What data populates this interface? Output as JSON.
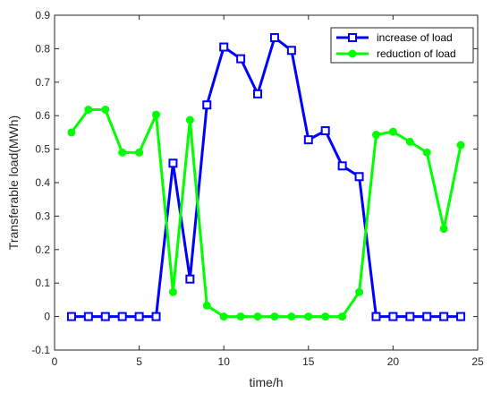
{
  "chart_data": {
    "type": "line",
    "title": "",
    "xlabel": "time/h",
    "ylabel": "Transferable load(MWh)",
    "xlim": [
      0,
      25
    ],
    "ylim": [
      -0.1,
      0.9
    ],
    "xticks": [
      0,
      5,
      10,
      15,
      20,
      25
    ],
    "yticks": [
      -0.1,
      0,
      0.1,
      0.2,
      0.3,
      0.4,
      0.5,
      0.6,
      0.7,
      0.8,
      0.9
    ],
    "grid": false,
    "legend_position": "top-right",
    "x": [
      1,
      2,
      3,
      4,
      5,
      6,
      7,
      8,
      9,
      10,
      11,
      12,
      13,
      14,
      15,
      16,
      17,
      18,
      19,
      20,
      21,
      22,
      23,
      24
    ],
    "series": [
      {
        "name": "increase of load",
        "color": "#0000ff",
        "marker": "square",
        "values": [
          0,
          0,
          0,
          0,
          0,
          0,
          0.458,
          0.112,
          0.632,
          0.805,
          0.77,
          0.665,
          0.833,
          0.795,
          0.528,
          0.555,
          0.45,
          0.418,
          0,
          0,
          0,
          0,
          0,
          0
        ]
      },
      {
        "name": "reduction of load",
        "color": "#00ff00",
        "marker": "circle",
        "values": [
          0.55,
          0.618,
          0.618,
          0.49,
          0.49,
          0.603,
          0.073,
          0.587,
          0.033,
          0,
          0,
          0,
          0,
          0,
          0,
          0,
          0,
          0.073,
          0.543,
          0.552,
          0.522,
          0.49,
          0.262,
          0.512
        ]
      }
    ]
  }
}
